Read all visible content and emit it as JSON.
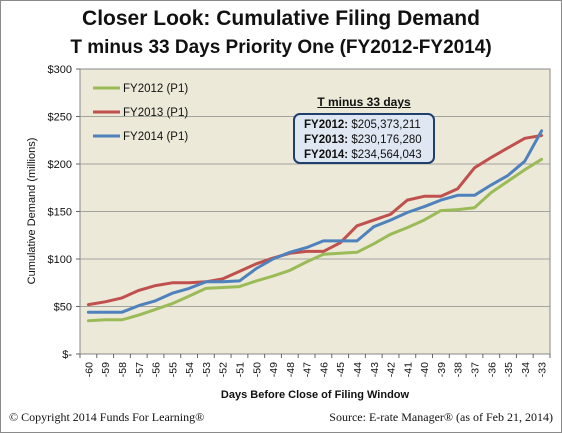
{
  "chart_data": {
    "type": "line",
    "title": "Closer Look: Cumulative Filing Demand",
    "subtitle": "T minus 33 Days Priority One (FY2012-FY2014)",
    "xlabel": "Days Before Close of Filing Window",
    "ylabel": "Cumulative Demand (millions)",
    "ylim": [
      0,
      300
    ],
    "yticks": [
      "$-",
      "$50",
      "$100",
      "$150",
      "$200",
      "$250",
      "$300"
    ],
    "ytick_values": [
      0,
      50,
      100,
      150,
      200,
      250,
      300
    ],
    "x": [
      -60,
      -59,
      -58,
      -57,
      -56,
      -55,
      -54,
      -53,
      -52,
      -51,
      -50,
      -49,
      -48,
      -47,
      -46,
      -45,
      -44,
      -43,
      -42,
      -41,
      -40,
      -39,
      -38,
      -37,
      -36,
      -35,
      -34,
      -33
    ],
    "grid": true,
    "legend_position": "top-left",
    "background": "#ece9d8",
    "series": [
      {
        "name": "FY2012 (P1)",
        "color": "#9bbb59",
        "values": [
          35,
          36,
          36,
          41,
          47,
          53,
          61,
          69,
          70,
          71,
          77,
          82,
          88,
          97,
          105,
          106,
          107,
          116,
          126,
          133,
          141,
          151,
          152,
          154,
          170,
          182,
          194,
          205
        ]
      },
      {
        "name": "FY2013 (P1)",
        "color": "#c0504d",
        "values": [
          52,
          55,
          59,
          67,
          72,
          75,
          75,
          76,
          79,
          87,
          95,
          101,
          106,
          108,
          108,
          117,
          135,
          141,
          147,
          162,
          166,
          166,
          174,
          196,
          207,
          217,
          227,
          230
        ]
      },
      {
        "name": "FY2014 (P1)",
        "color": "#4f81bd",
        "values": [
          44,
          44,
          44,
          51,
          56,
          64,
          69,
          76,
          76,
          77,
          90,
          100,
          107,
          112,
          119,
          119,
          119,
          134,
          141,
          149,
          155,
          162,
          167,
          167,
          178,
          188,
          203,
          235
        ]
      }
    ]
  },
  "callout": {
    "title": "T minus 33 days",
    "rows": [
      {
        "label": "FY2012:",
        "value": "$205,373,211"
      },
      {
        "label": "FY2013:",
        "value": "$230,176,280"
      },
      {
        "label": "FY2014:",
        "value": "$234,564,043"
      }
    ]
  },
  "footer": {
    "left": "© Copyright  2014 Funds For Learning®",
    "right": "Source:  E-rate  Manager®  (as of Feb 21, 2014)"
  }
}
